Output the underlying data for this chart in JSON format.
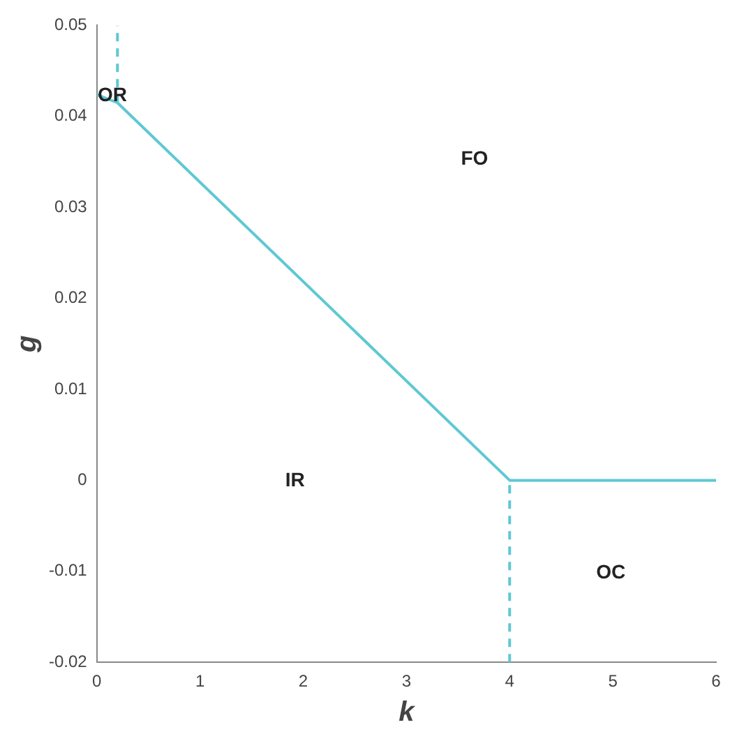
{
  "chart_data": {
    "type": "line",
    "xlabel": "k",
    "ylabel": "g",
    "xlim": [
      0,
      6
    ],
    "ylim": [
      -0.02,
      0.05
    ],
    "xticks": [
      0,
      1,
      2,
      3,
      4,
      5,
      6
    ],
    "yticks": [
      -0.02,
      -0.01,
      0,
      0.01,
      0.02,
      0.03,
      0.04,
      0.05
    ],
    "grid": false,
    "legend": false,
    "marker": "none",
    "series": [
      {
        "color": "#5ec8d3",
        "x": [
          0,
          0.2,
          4,
          6
        ],
        "values": [
          0.0424,
          0.0415,
          0,
          0
        ],
        "line_style": "solid"
      },
      {
        "color": "#5ec8d3",
        "x": [
          0.2,
          0.2
        ],
        "values": [
          0.0415,
          0.05
        ],
        "line_style": "dashed"
      },
      {
        "color": "#5ec8d3",
        "x": [
          4,
          4
        ],
        "values": [
          -0.02,
          0
        ],
        "line_style": "dashed"
      }
    ],
    "annotations": [
      "OR",
      "FO",
      "IR",
      "OC"
    ]
  }
}
